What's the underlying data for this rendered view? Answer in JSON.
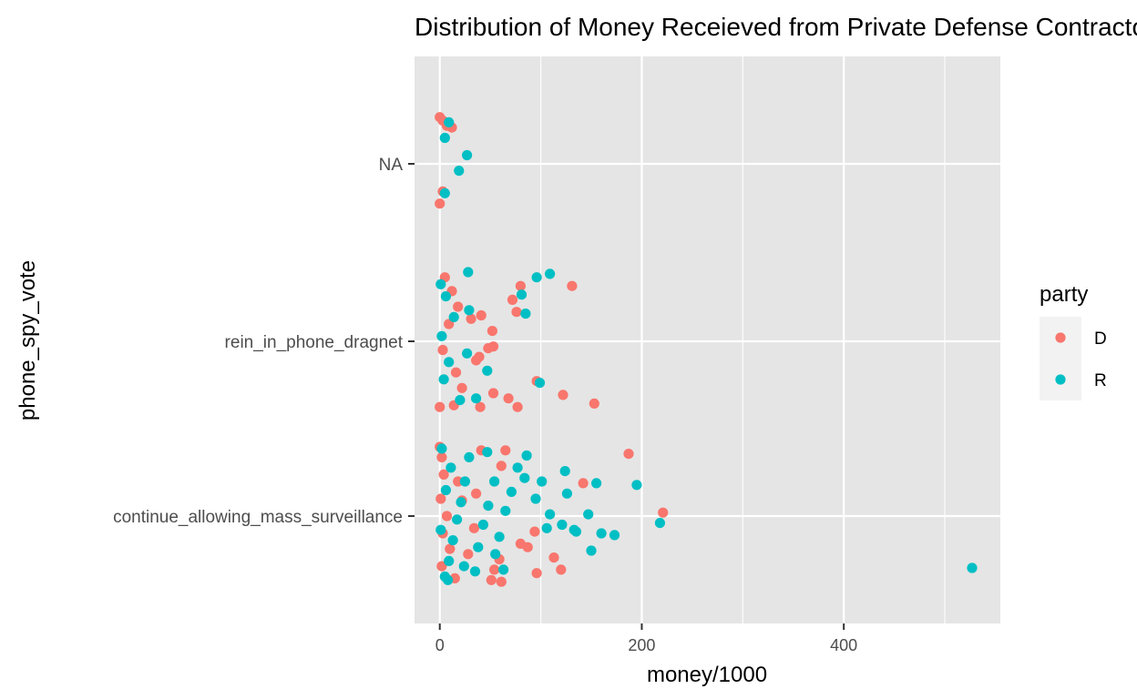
{
  "chart_data": {
    "type": "scatter",
    "title": "Distribution of Money Receieved from Private Defense Contractors",
    "xlabel": "money/1000",
    "ylabel": "phone_spy_vote",
    "x_ticks": [
      0,
      200,
      400
    ],
    "xlim": [
      -25,
      555
    ],
    "categories": [
      "continue_allowing_mass_surveillance",
      "rein_in_phone_dragnet",
      "NA"
    ],
    "legend": {
      "title": "party",
      "position": "right",
      "entries": [
        "D",
        "R"
      ]
    },
    "colors": {
      "D": "#F8766D",
      "R": "#00BFC4",
      "panel": "#E5E5E5",
      "grid": "#FFFFFF"
    },
    "grid": true,
    "series": [
      {
        "name": "D",
        "points": [
          [
            0,
            "NA",
            0.27
          ],
          [
            3,
            "NA",
            0.25
          ],
          [
            7,
            "NA",
            0.22
          ],
          [
            12,
            "NA",
            0.21
          ],
          [
            3,
            "NA",
            -0.16
          ],
          [
            0,
            "NA",
            -0.23
          ],
          [
            131,
            "rein_in_phone_dragnet",
            0.32
          ],
          [
            80,
            "rein_in_phone_dragnet",
            0.32
          ],
          [
            72,
            "rein_in_phone_dragnet",
            0.24
          ],
          [
            76,
            "rein_in_phone_dragnet",
            0.17
          ],
          [
            41,
            "rein_in_phone_dragnet",
            0.15
          ],
          [
            31,
            "rein_in_phone_dragnet",
            0.13
          ],
          [
            52,
            "rein_in_phone_dragnet",
            0.06
          ],
          [
            53,
            "rein_in_phone_dragnet",
            -0.03
          ],
          [
            48,
            "rein_in_phone_dragnet",
            -0.04
          ],
          [
            39,
            "rein_in_phone_dragnet",
            -0.09
          ],
          [
            36,
            "rein_in_phone_dragnet",
            -0.11
          ],
          [
            96,
            "rein_in_phone_dragnet",
            -0.23
          ],
          [
            122,
            "rein_in_phone_dragnet",
            -0.31
          ],
          [
            153,
            "rein_in_phone_dragnet",
            -0.36
          ],
          [
            68,
            "rein_in_phone_dragnet",
            -0.33
          ],
          [
            53,
            "rein_in_phone_dragnet",
            -0.3
          ],
          [
            40,
            "rein_in_phone_dragnet",
            -0.38
          ],
          [
            77,
            "rein_in_phone_dragnet",
            -0.38
          ],
          [
            5,
            "rein_in_phone_dragnet",
            0.37
          ],
          [
            12,
            "rein_in_phone_dragnet",
            0.29
          ],
          [
            18,
            "rein_in_phone_dragnet",
            0.2
          ],
          [
            9,
            "rein_in_phone_dragnet",
            0.1
          ],
          [
            3,
            "rein_in_phone_dragnet",
            -0.05
          ],
          [
            16,
            "rein_in_phone_dragnet",
            -0.18
          ],
          [
            22,
            "rein_in_phone_dragnet",
            -0.27
          ],
          [
            0,
            "rein_in_phone_dragnet",
            -0.38
          ],
          [
            14,
            "rein_in_phone_dragnet",
            -0.37
          ],
          [
            187,
            "continue_allowing_mass_surveillance",
            0.36
          ],
          [
            221,
            "continue_allowing_mass_surveillance",
            0.02
          ],
          [
            142,
            "continue_allowing_mass_surveillance",
            0.19
          ],
          [
            94,
            "continue_allowing_mass_surveillance",
            -0.09
          ],
          [
            80,
            "continue_allowing_mass_surveillance",
            -0.16
          ],
          [
            87,
            "continue_allowing_mass_surveillance",
            -0.18
          ],
          [
            113,
            "continue_allowing_mass_surveillance",
            -0.24
          ],
          [
            120,
            "continue_allowing_mass_surveillance",
            -0.31
          ],
          [
            96,
            "continue_allowing_mass_surveillance",
            -0.33
          ],
          [
            59,
            "continue_allowing_mass_surveillance",
            -0.25
          ],
          [
            54,
            "continue_allowing_mass_surveillance",
            -0.31
          ],
          [
            61,
            "continue_allowing_mass_surveillance",
            -0.38
          ],
          [
            51,
            "continue_allowing_mass_surveillance",
            -0.37
          ],
          [
            65,
            "continue_allowing_mass_surveillance",
            0.38
          ],
          [
            41,
            "continue_allowing_mass_surveillance",
            0.38
          ],
          [
            61,
            "continue_allowing_mass_surveillance",
            0.29
          ],
          [
            36,
            "continue_allowing_mass_surveillance",
            0.13
          ],
          [
            22,
            "continue_allowing_mass_surveillance",
            0.09
          ],
          [
            0,
            "continue_allowing_mass_surveillance",
            0.4
          ],
          [
            2,
            "continue_allowing_mass_surveillance",
            0.34
          ],
          [
            4,
            "continue_allowing_mass_surveillance",
            0.24
          ],
          [
            1,
            "continue_allowing_mass_surveillance",
            0.1
          ],
          [
            7,
            "continue_allowing_mass_surveillance",
            0.0
          ],
          [
            3,
            "continue_allowing_mass_surveillance",
            -0.1
          ],
          [
            10,
            "continue_allowing_mass_surveillance",
            -0.19
          ],
          [
            2,
            "continue_allowing_mass_surveillance",
            -0.29
          ],
          [
            15,
            "continue_allowing_mass_surveillance",
            -0.36
          ],
          [
            28,
            "continue_allowing_mass_surveillance",
            -0.22
          ],
          [
            34,
            "continue_allowing_mass_surveillance",
            -0.07
          ],
          [
            18,
            "continue_allowing_mass_surveillance",
            0.2
          ]
        ]
      },
      {
        "name": "R",
        "points": [
          [
            9,
            "NA",
            0.24
          ],
          [
            5,
            "NA",
            0.15
          ],
          [
            27,
            "NA",
            0.05
          ],
          [
            19,
            "NA",
            -0.04
          ],
          [
            5,
            "NA",
            -0.17
          ],
          [
            109,
            "rein_in_phone_dragnet",
            0.39
          ],
          [
            96,
            "rein_in_phone_dragnet",
            0.37
          ],
          [
            28,
            "rein_in_phone_dragnet",
            0.4
          ],
          [
            81,
            "rein_in_phone_dragnet",
            0.27
          ],
          [
            85,
            "rein_in_phone_dragnet",
            0.16
          ],
          [
            29,
            "rein_in_phone_dragnet",
            0.18
          ],
          [
            99,
            "rein_in_phone_dragnet",
            -0.24
          ],
          [
            47,
            "rein_in_phone_dragnet",
            -0.17
          ],
          [
            36,
            "rein_in_phone_dragnet",
            -0.33
          ],
          [
            27,
            "rein_in_phone_dragnet",
            -0.07
          ],
          [
            1,
            "rein_in_phone_dragnet",
            0.33
          ],
          [
            6,
            "rein_in_phone_dragnet",
            0.26
          ],
          [
            14,
            "rein_in_phone_dragnet",
            0.14
          ],
          [
            2,
            "rein_in_phone_dragnet",
            0.03
          ],
          [
            9,
            "rein_in_phone_dragnet",
            -0.12
          ],
          [
            20,
            "rein_in_phone_dragnet",
            -0.34
          ],
          [
            4,
            "rein_in_phone_dragnet",
            -0.22
          ],
          [
            527,
            "continue_allowing_mass_surveillance",
            -0.3
          ],
          [
            218,
            "continue_allowing_mass_surveillance",
            -0.04
          ],
          [
            195,
            "continue_allowing_mass_surveillance",
            0.18
          ],
          [
            173,
            "continue_allowing_mass_surveillance",
            -0.11
          ],
          [
            160,
            "continue_allowing_mass_surveillance",
            -0.1
          ],
          [
            150,
            "continue_allowing_mass_surveillance",
            -0.2
          ],
          [
            155,
            "continue_allowing_mass_surveillance",
            0.19
          ],
          [
            147,
            "continue_allowing_mass_surveillance",
            0.01
          ],
          [
            124,
            "continue_allowing_mass_surveillance",
            0.26
          ],
          [
            126,
            "continue_allowing_mass_surveillance",
            0.13
          ],
          [
            133,
            "continue_allowing_mass_surveillance",
            -0.08
          ],
          [
            135,
            "continue_allowing_mass_surveillance",
            -0.09
          ],
          [
            121,
            "continue_allowing_mass_surveillance",
            -0.05
          ],
          [
            109,
            "continue_allowing_mass_surveillance",
            0.01
          ],
          [
            106,
            "continue_allowing_mass_surveillance",
            -0.07
          ],
          [
            101,
            "continue_allowing_mass_surveillance",
            0.2
          ],
          [
            95,
            "continue_allowing_mass_surveillance",
            0.1
          ],
          [
            86,
            "continue_allowing_mass_surveillance",
            0.35
          ],
          [
            77,
            "continue_allowing_mass_surveillance",
            0.28
          ],
          [
            71,
            "continue_allowing_mass_surveillance",
            0.14
          ],
          [
            65,
            "continue_allowing_mass_surveillance",
            0.03
          ],
          [
            59,
            "continue_allowing_mass_surveillance",
            -0.12
          ],
          [
            55,
            "continue_allowing_mass_surveillance",
            -0.22
          ],
          [
            47,
            "continue_allowing_mass_surveillance",
            0.37
          ],
          [
            54,
            "continue_allowing_mass_surveillance",
            0.2
          ],
          [
            48,
            "continue_allowing_mass_surveillance",
            0.06
          ],
          [
            43,
            "continue_allowing_mass_surveillance",
            -0.05
          ],
          [
            38,
            "continue_allowing_mass_surveillance",
            -0.18
          ],
          [
            35,
            "continue_allowing_mass_surveillance",
            -0.32
          ],
          [
            29,
            "continue_allowing_mass_surveillance",
            0.34
          ],
          [
            25,
            "continue_allowing_mass_surveillance",
            0.2
          ],
          [
            21,
            "continue_allowing_mass_surveillance",
            0.08
          ],
          [
            17,
            "continue_allowing_mass_surveillance",
            -0.02
          ],
          [
            13,
            "continue_allowing_mass_surveillance",
            -0.14
          ],
          [
            9,
            "continue_allowing_mass_surveillance",
            -0.26
          ],
          [
            5,
            "continue_allowing_mass_surveillance",
            -0.35
          ],
          [
            2,
            "continue_allowing_mass_surveillance",
            0.39
          ],
          [
            11,
            "continue_allowing_mass_surveillance",
            0.28
          ],
          [
            6,
            "continue_allowing_mass_surveillance",
            0.15
          ],
          [
            1,
            "continue_allowing_mass_surveillance",
            -0.08
          ],
          [
            8,
            "continue_allowing_mass_surveillance",
            -0.37
          ],
          [
            24,
            "continue_allowing_mass_surveillance",
            -0.29
          ],
          [
            63,
            "continue_allowing_mass_surveillance",
            -0.31
          ],
          [
            84,
            "continue_allowing_mass_surveillance",
            0.22
          ]
        ]
      }
    ]
  }
}
